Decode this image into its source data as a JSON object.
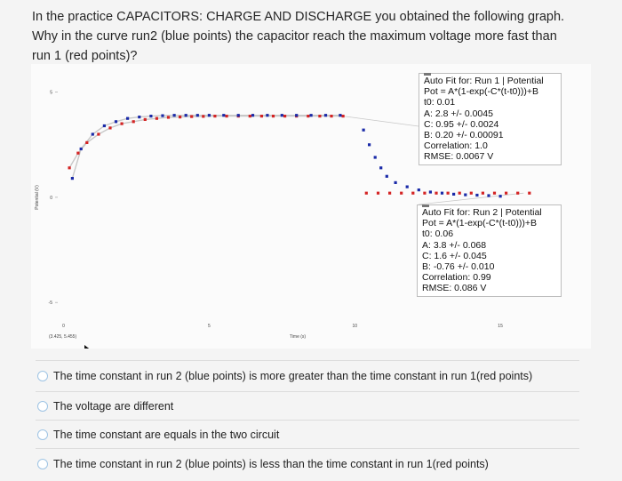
{
  "question": {
    "text": "In the practice CAPACITORS: CHARGE AND DISCHARGE you obtained the following graph. Why in the curve run2 (blue points) the capacitor reach the maximum voltage more fast than run 1 (red points)?"
  },
  "graph": {
    "y_axis_label": "Potential (V)",
    "x_axis_label": "Time (s)",
    "coord_readout": "(3.425, 5.455)",
    "fit_run1": {
      "title": "Auto Fit for: Run 1 | Potential",
      "lines": [
        "Pot = A*(1-exp(-C*(t-t0)))+B",
        "t0: 0.01",
        "A: 2.8 +/- 0.0045",
        "C: 0.95 +/- 0.0024",
        "B: 0.20 +/- 0.00091",
        "Correlation: 1.0",
        "RMSE: 0.0067 V"
      ]
    },
    "fit_run2": {
      "title": "Auto Fit for: Run 2 | Potential",
      "lines": [
        "Pot = A*(1-exp(-C*(t-t0)))+B",
        "t0: 0.06",
        "A: 3.8 +/- 0.068",
        "C: 1.6 +/- 0.045",
        "B: -0.76 +/- 0.010",
        "Correlation: 0.99",
        "RMSE: 0.086 V"
      ]
    },
    "colors": {
      "run1": "#d42424",
      "run2": "#1a2aa8",
      "fit": "#c8c8c8"
    }
  },
  "chart_data": {
    "type": "scatter",
    "xlabel": "Time (s)",
    "ylabel": "Potential (V)",
    "xlim": [
      -0.2,
      17.5
    ],
    "ylim": [
      -5.5,
      6
    ],
    "x_ticks": [
      0,
      5,
      10,
      15
    ],
    "y_ticks": [
      -5,
      0,
      5
    ],
    "grid": false,
    "series": [
      {
        "name": "Run 1",
        "color": "#d42424",
        "x": [
          0.2,
          0.5,
          0.8,
          1.2,
          1.6,
          2.0,
          2.4,
          2.8,
          3.2,
          3.6,
          4.0,
          4.4,
          4.8,
          5.2,
          5.6,
          6.0,
          6.4,
          6.8,
          7.2,
          7.6,
          8.0,
          8.4,
          8.8,
          9.2,
          9.6,
          10.4,
          10.8,
          11.2,
          11.6,
          12.0,
          12.4,
          12.8,
          13.2,
          13.6,
          14.0,
          14.4,
          14.8,
          15.2,
          15.6,
          16.0
        ],
        "y": [
          1.4,
          2.1,
          2.6,
          3.0,
          3.3,
          3.5,
          3.6,
          3.7,
          3.75,
          3.8,
          3.82,
          3.84,
          3.85,
          3.86,
          3.86,
          3.86,
          3.86,
          3.86,
          3.86,
          3.86,
          3.86,
          3.86,
          3.86,
          3.86,
          3.86,
          0.2,
          0.2,
          0.2,
          0.2,
          0.2,
          0.2,
          0.2,
          0.2,
          0.2,
          0.2,
          0.2,
          0.2,
          0.2,
          0.2,
          0.2
        ]
      },
      {
        "name": "Run 2",
        "color": "#1a2aa8",
        "x": [
          0.3,
          0.6,
          1.0,
          1.4,
          1.8,
          2.2,
          2.6,
          3.0,
          3.4,
          3.8,
          4.2,
          4.6,
          5.0,
          5.5,
          6.0,
          6.5,
          7.0,
          7.5,
          8.0,
          8.5,
          9.0,
          9.5,
          10.3,
          10.5,
          10.7,
          10.9,
          11.1,
          11.4,
          11.8,
          12.2,
          12.6,
          13.0,
          13.4,
          13.8,
          14.2,
          14.6,
          15.0
        ],
        "y": [
          0.9,
          2.3,
          3.0,
          3.4,
          3.6,
          3.75,
          3.82,
          3.86,
          3.88,
          3.9,
          3.9,
          3.9,
          3.9,
          3.9,
          3.9,
          3.9,
          3.9,
          3.9,
          3.9,
          3.9,
          3.9,
          3.9,
          3.2,
          2.5,
          1.9,
          1.4,
          1.0,
          0.7,
          0.5,
          0.35,
          0.25,
          0.2,
          0.15,
          0.12,
          0.1,
          0.08,
          0.05
        ]
      }
    ]
  },
  "options": [
    {
      "label": "The time constant in run 2 (blue points) is more greater than the time constant in run 1(red points)"
    },
    {
      "label": "The voltage are different"
    },
    {
      "label": "The time constant are equals in the two circuit"
    },
    {
      "label": "The time constant in run 2 (blue points) is less than the time constant in run 1(red points)"
    }
  ]
}
